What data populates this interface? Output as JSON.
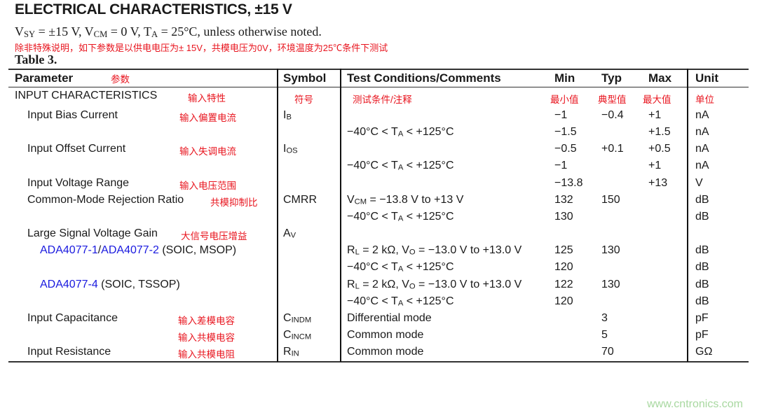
{
  "title": "ELECTRICAL CHARACTERISTICS, ±15 V",
  "conditions": [
    {
      "t": "V"
    },
    {
      "sub": "SY"
    },
    {
      "t": " = ±15 V, V"
    },
    {
      "sub": "CM"
    },
    {
      "t": " = 0 V, T"
    },
    {
      "sub": "A"
    },
    {
      "t": " = 25°C, unless otherwise noted."
    }
  ],
  "conditions_cn": "除非特殊说明，如下参数是以供电电压为± 15V，共模电压为0V，环境温度为25℃条件下测试",
  "table_label": "Table 3.",
  "headers": {
    "param": "Parameter",
    "symbol": "Symbol",
    "test": "Test Conditions/Comments",
    "min": "Min",
    "typ": "Typ",
    "max": "Max",
    "unit": "Unit"
  },
  "headers_cn": {
    "param": "参数",
    "symbol": "符号",
    "test": "测试条件/注释",
    "min": "最小值",
    "typ": "典型值",
    "max": "最大值",
    "unit": "单位"
  },
  "rows": [
    {
      "param": [
        {
          "t": "INPUT CHARACTERISTICS"
        }
      ],
      "level": 0,
      "cn": "输入特性"
    },
    {
      "param": [
        {
          "t": "Input Bias Current"
        }
      ],
      "level": 1,
      "cn": "输入偏置电流",
      "symbol": [
        {
          "t": "I"
        },
        {
          "sub": "B"
        }
      ],
      "min": "−1",
      "typ": "−0.4",
      "max": "+1",
      "unit": "nA"
    },
    {
      "test": [
        {
          "t": "−40°C < T"
        },
        {
          "sub": "A"
        },
        {
          "t": " < +125°C"
        }
      ],
      "min": "−1.5",
      "max": "+1.5",
      "unit": "nA"
    },
    {
      "param": [
        {
          "t": "Input Offset Current"
        }
      ],
      "level": 1,
      "cn": "输入失调电流",
      "symbol": [
        {
          "t": "I"
        },
        {
          "sub": "OS"
        }
      ],
      "min": "−0.5",
      "typ": "+0.1",
      "max": "+0.5",
      "unit": "nA"
    },
    {
      "test": [
        {
          "t": "−40°C < T"
        },
        {
          "sub": "A"
        },
        {
          "t": " < +125°C"
        }
      ],
      "min": "−1",
      "max": "+1",
      "unit": "nA"
    },
    {
      "param": [
        {
          "t": "Input Voltage Range"
        }
      ],
      "level": 1,
      "cn": "输入电压范围",
      "min": "−13.8",
      "max": "+13",
      "unit": "V"
    },
    {
      "param": [
        {
          "t": "Common-Mode Rejection Ratio"
        }
      ],
      "level": 1,
      "cn": "共模抑制比",
      "symbol": [
        {
          "t": "CMRR"
        }
      ],
      "test": [
        {
          "t": "V"
        },
        {
          "sub": "CM"
        },
        {
          "t": " = −13.8 V to +13 V"
        }
      ],
      "min": "132",
      "typ": "150",
      "unit": "dB"
    },
    {
      "test": [
        {
          "t": "−40°C < T"
        },
        {
          "sub": "A"
        },
        {
          "t": " < +125°C"
        }
      ],
      "min": "130",
      "unit": "dB"
    },
    {
      "param": [
        {
          "t": "Large Signal Voltage Gain"
        }
      ],
      "level": 1,
      "cn": "大信号电压增益",
      "symbol": [
        {
          "t": "A"
        },
        {
          "sub": "V"
        }
      ]
    },
    {
      "param": [
        {
          "link": "ADA4077-1"
        },
        {
          "t": "/"
        },
        {
          "link": "ADA4077-2"
        },
        {
          "t": " (SOIC, MSOP)"
        }
      ],
      "level": 2,
      "test": [
        {
          "t": "R"
        },
        {
          "sub": "L"
        },
        {
          "t": " = 2 kΩ, V"
        },
        {
          "sub": "O"
        },
        {
          "t": " = −13.0 V to +13.0 V"
        }
      ],
      "min": "125",
      "typ": "130",
      "unit": "dB"
    },
    {
      "test": [
        {
          "t": "−40°C < T"
        },
        {
          "sub": "A"
        },
        {
          "t": " < +125°C"
        }
      ],
      "min": "120",
      "unit": "dB"
    },
    {
      "param": [
        {
          "link": "ADA4077-4"
        },
        {
          "t": " (SOIC, TSSOP)"
        }
      ],
      "level": 2,
      "test": [
        {
          "t": "R"
        },
        {
          "sub": "L"
        },
        {
          "t": " = 2 kΩ, V"
        },
        {
          "sub": "O"
        },
        {
          "t": " = −13.0 V to +13.0 V"
        }
      ],
      "min": "122",
      "typ": "130",
      "unit": "dB"
    },
    {
      "test": [
        {
          "t": "−40°C < T"
        },
        {
          "sub": "A"
        },
        {
          "t": " < +125°C"
        }
      ],
      "min": "120",
      "unit": "dB"
    },
    {
      "param": [
        {
          "t": "Input Capacitance"
        }
      ],
      "level": 1,
      "cn": "输入差模电容",
      "symbol": [
        {
          "t": "C"
        },
        {
          "sub": "INDM"
        }
      ],
      "test": [
        {
          "t": "Differential mode"
        }
      ],
      "typ": "3",
      "unit": "pF"
    },
    {
      "cn": "输入共模电容",
      "symbol": [
        {
          "t": "C"
        },
        {
          "sub": "INCM"
        }
      ],
      "test": [
        {
          "t": "Common mode"
        }
      ],
      "typ": "5",
      "unit": "pF"
    },
    {
      "param": [
        {
          "t": "Input Resistance"
        }
      ],
      "level": 1,
      "cn": "输入共模电阻",
      "symbol": [
        {
          "t": "R"
        },
        {
          "sub": "IN"
        }
      ],
      "test": [
        {
          "t": "Common mode"
        }
      ],
      "typ": "70",
      "unit": "GΩ"
    }
  ],
  "watermark": "www.cntronics.com"
}
